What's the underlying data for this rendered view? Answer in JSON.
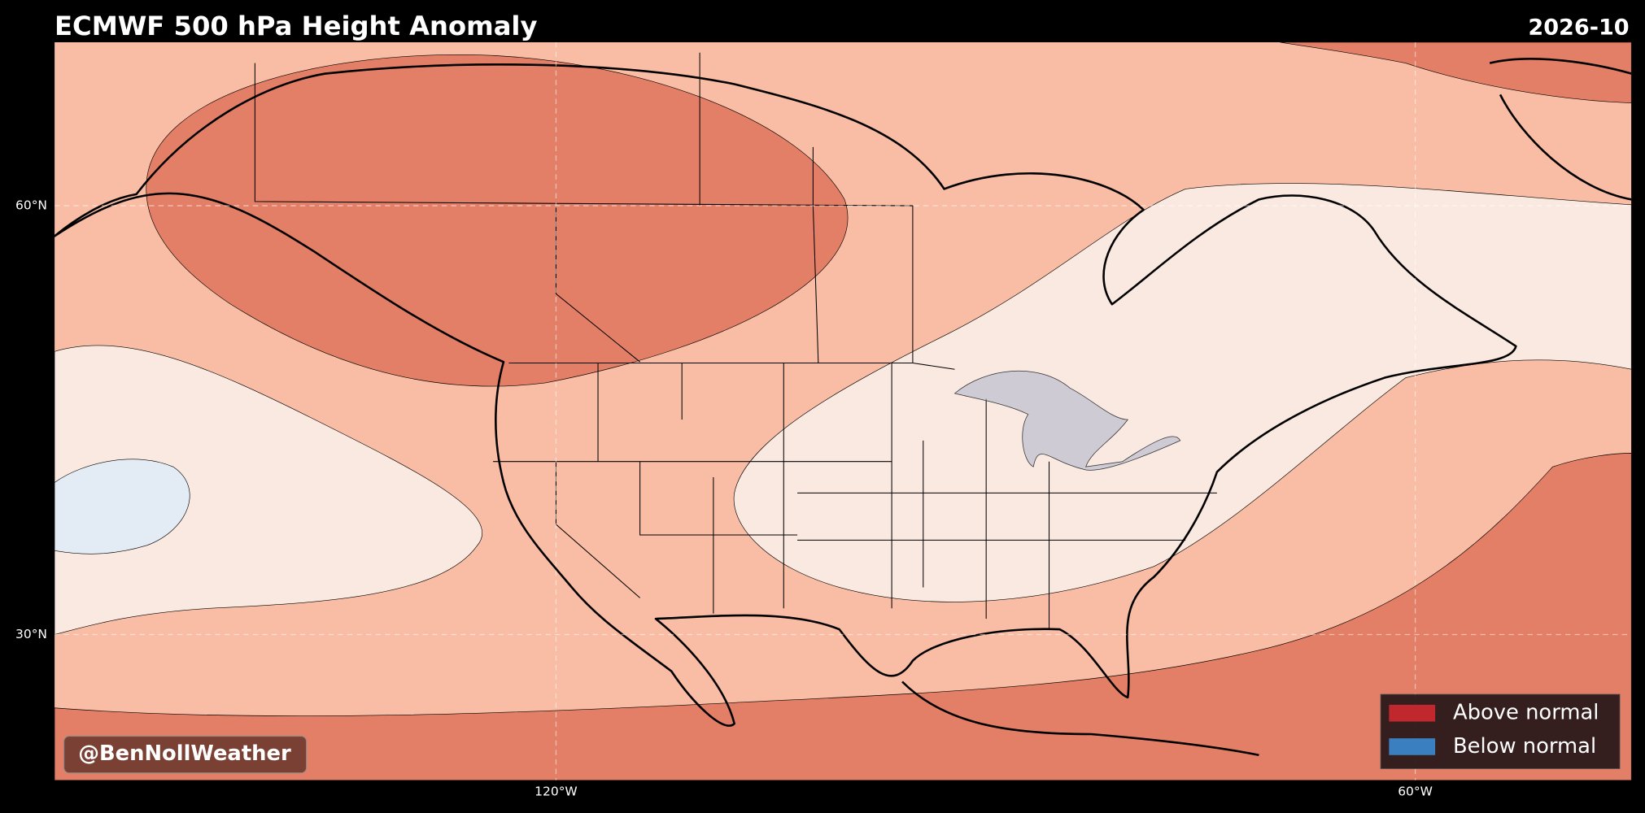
{
  "title": "ECMWF 500 hPa Height Anomaly",
  "date": "2026-10",
  "lat_labels": [
    "60°N",
    "30°N"
  ],
  "lon_labels": [
    "120°W",
    "60°W"
  ],
  "legend": [
    {
      "label": "Above normal",
      "color": "#c0282d"
    },
    {
      "label": "Below normal",
      "color": "#3a7fc0"
    }
  ],
  "watermark": "@BenNollWeather"
}
